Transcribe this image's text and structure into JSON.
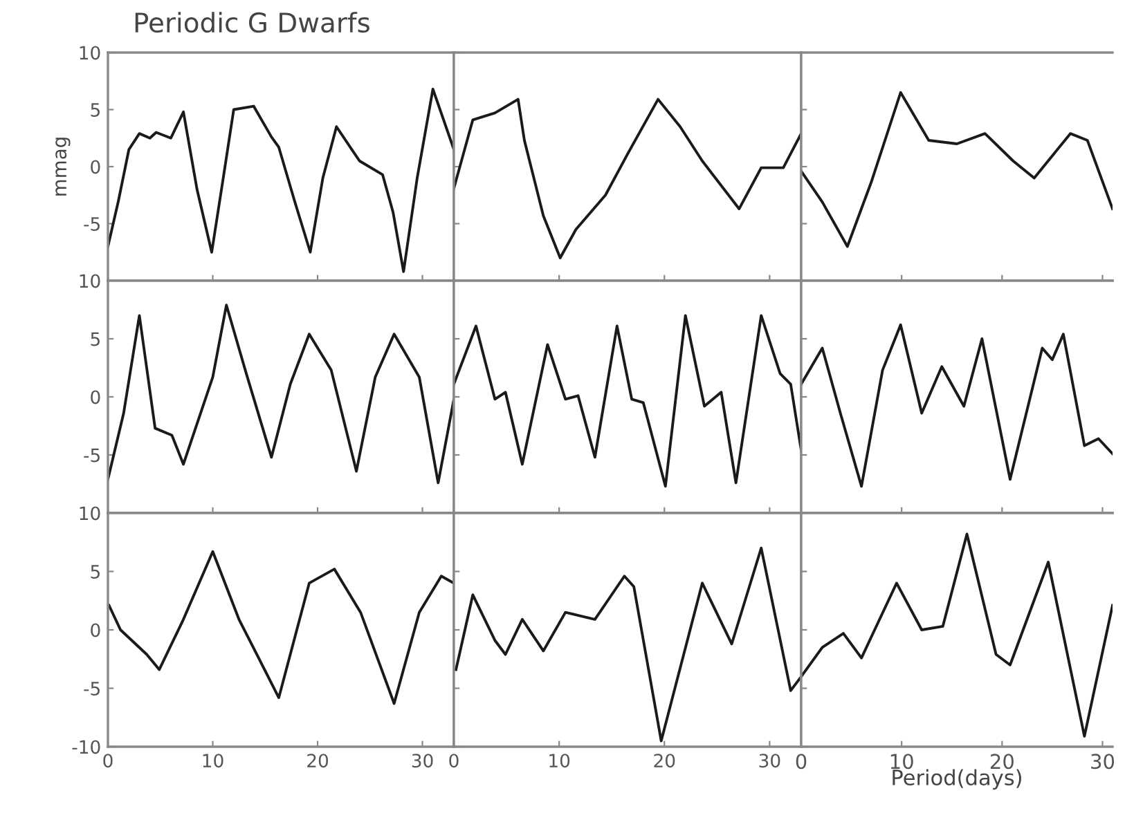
{
  "chart_data": [
    {
      "type": "line",
      "title": "Periodic G Dwarfs",
      "ylabel": "mmag",
      "tick_labels": "y",
      "xlim": [
        0,
        33
      ],
      "xticks": [
        0,
        10,
        20,
        30
      ],
      "ylim": [
        -10,
        10
      ],
      "yticks": [
        {
          "value": -10,
          "label": null
        },
        -5,
        0,
        5,
        10
      ],
      "grid": false,
      "legend": false,
      "series": [
        {
          "color": "#1a1a1a",
          "x": [
            0,
            1,
            2,
            3,
            4,
            4.6,
            6,
            7.2,
            8.5,
            9.9,
            11,
            12,
            13.9,
            15.6,
            16.3,
            17.8,
            19.3,
            20.5,
            21.8,
            24,
            26.2,
            27.2,
            28.2,
            29.5,
            31,
            33
          ],
          "values": [
            -7,
            -3,
            1.5,
            2.9,
            2.5,
            3,
            2.5,
            4.8,
            -2,
            -7.5,
            -1,
            5,
            5.3,
            2.6,
            1.7,
            -3,
            -7.5,
            -1,
            3.5,
            0.5,
            -0.7,
            -4,
            -9.2,
            -1,
            6.8,
            1.5
          ]
        }
      ]
    },
    {
      "type": "line",
      "tick_labels": false,
      "xlim": [
        0,
        33
      ],
      "xticks": [
        0,
        10,
        20,
        30
      ],
      "ylim": [
        -10,
        10
      ],
      "yticks": [
        -10,
        -5,
        0,
        5,
        10
      ],
      "grid": false,
      "legend": false,
      "series": [
        {
          "color": "#1a1a1a",
          "x": [
            0,
            1.8,
            3.9,
            6.1,
            6.7,
            8.5,
            10.1,
            11.6,
            14.4,
            16.5,
            19.4,
            21.5,
            23.6,
            27.1,
            29.2,
            31.3,
            33
          ],
          "values": [
            -1.9,
            4.1,
            4.7,
            5.9,
            2.3,
            -4.3,
            -8,
            -5.5,
            -2.5,
            1.1,
            5.9,
            3.5,
            0.5,
            -3.7,
            -0.1,
            -0.1,
            2.9
          ]
        }
      ]
    },
    {
      "type": "line",
      "tick_labels": false,
      "xlim": [
        0,
        31
      ],
      "xticks": [
        0,
        10,
        20,
        30
      ],
      "ylim": [
        -10,
        10
      ],
      "yticks": [
        -10,
        -5,
        0,
        5,
        10
      ],
      "grid": false,
      "legend": false,
      "series": [
        {
          "color": "#1a1a1a",
          "x": [
            0,
            2.1,
            4.6,
            7,
            9.9,
            12.7,
            15.5,
            18.3,
            21.1,
            23.2,
            26.8,
            28.5,
            31
          ],
          "values": [
            -0.4,
            -3.1,
            -7,
            -1.3,
            6.5,
            2.3,
            2,
            2.9,
            0.5,
            -1,
            2.9,
            2.3,
            -3.7
          ]
        }
      ]
    },
    {
      "type": "line",
      "tick_labels": "y",
      "xlim": [
        0,
        33
      ],
      "xticks": [
        0,
        10,
        20,
        30
      ],
      "ylim": [
        -10,
        10
      ],
      "yticks": [
        {
          "value": -10,
          "label": null
        },
        -5,
        0,
        5,
        10
      ],
      "grid": false,
      "legend": false,
      "series": [
        {
          "color": "#1a1a1a",
          "x": [
            0,
            1.5,
            3,
            4.5,
            6.1,
            7.2,
            10,
            11.3,
            13.2,
            15.6,
            17.4,
            19.2,
            21.3,
            23.7,
            25.5,
            27.3,
            29.7,
            31.5,
            33
          ],
          "values": [
            -7.1,
            -1.4,
            7,
            -2.7,
            -3.3,
            -5.8,
            1.7,
            7.9,
            2,
            -5.2,
            1.1,
            5.4,
            2.3,
            -6.4,
            1.7,
            5.4,
            1.7,
            -7.4,
            -0.2
          ]
        }
      ]
    },
    {
      "type": "line",
      "tick_labels": false,
      "xlim": [
        0,
        33
      ],
      "xticks": [
        0,
        10,
        20,
        30
      ],
      "ylim": [
        -10,
        10
      ],
      "yticks": [
        -10,
        -5,
        0,
        5,
        10
      ],
      "grid": false,
      "legend": false,
      "series": [
        {
          "color": "#1a1a1a",
          "x": [
            0,
            2.1,
            3.9,
            4.9,
            6.5,
            8.9,
            10.6,
            11.8,
            13.4,
            15.5,
            16.9,
            18,
            20.1,
            22,
            23.8,
            25.4,
            26.8,
            29.2,
            31,
            32,
            33
          ],
          "values": [
            1.1,
            6.1,
            -0.2,
            0.4,
            -5.8,
            4.5,
            -0.2,
            0.1,
            -5.2,
            6.1,
            -0.2,
            -0.5,
            -7.7,
            7,
            -0.8,
            0.4,
            -7.4,
            7,
            2,
            1.1,
            -4.6
          ]
        }
      ]
    },
    {
      "type": "line",
      "tick_labels": false,
      "xlim": [
        0,
        31
      ],
      "xticks": [
        0,
        10,
        20,
        30
      ],
      "ylim": [
        -10,
        10
      ],
      "yticks": [
        -10,
        -5,
        0,
        5,
        10
      ],
      "grid": false,
      "legend": false,
      "series": [
        {
          "color": "#1a1a1a",
          "x": [
            0,
            2.1,
            3.9,
            6,
            8.1,
            9.9,
            12,
            14,
            16.2,
            18,
            20.8,
            24,
            25,
            26.1,
            28.2,
            29.6,
            31
          ],
          "values": [
            1.1,
            4.2,
            -1.4,
            -7.7,
            2.3,
            6.2,
            -1.4,
            2.6,
            -0.8,
            5,
            -7.1,
            4.2,
            3.2,
            5.4,
            -4.2,
            -3.6,
            -4.9
          ]
        }
      ]
    },
    {
      "type": "line",
      "xlim": [
        0,
        33
      ],
      "xticks": [
        0,
        10,
        20,
        30
      ],
      "ylim": [
        -10,
        10
      ],
      "yticks": [
        -10,
        -5,
        0,
        5,
        10
      ],
      "grid": false,
      "legend": false,
      "series": [
        {
          "color": "#1a1a1a",
          "x": [
            0.1,
            1.2,
            3.7,
            4.9,
            7.2,
            10,
            12.5,
            14.2,
            16.3,
            19.2,
            21.6,
            24.1,
            27.3,
            29.7,
            31.8,
            33
          ],
          "values": [
            2.1,
            0,
            -2.1,
            -3.4,
            0.9,
            6.7,
            0.9,
            -2.1,
            -5.8,
            4,
            5.2,
            1.5,
            -6.3,
            1.5,
            4.6,
            4
          ]
        }
      ]
    },
    {
      "type": "line",
      "tick_labels": "x",
      "xlim": [
        0,
        33
      ],
      "xticks": [
        0,
        10,
        20,
        30
      ],
      "ylim": [
        -10,
        10
      ],
      "yticks": [
        -10,
        -5,
        0,
        5,
        10
      ],
      "grid": false,
      "legend": false,
      "series": [
        {
          "color": "#1a1a1a",
          "x": [
            0.2,
            1.8,
            3.9,
            4.9,
            6.5,
            8.5,
            10.6,
            13.4,
            16.2,
            17.1,
            19.7,
            23.6,
            26.4,
            29.2,
            32,
            33
          ],
          "values": [
            -3.4,
            3,
            -0.9,
            -2.1,
            0.9,
            -1.8,
            1.5,
            0.9,
            4.6,
            3.7,
            -9.5,
            4,
            -1.2,
            7,
            -5.2,
            -4
          ]
        }
      ]
    },
    {
      "type": "line",
      "xlabel": "Period(days)",
      "tick_labels": "x",
      "xlim": [
        0,
        31
      ],
      "xticks": [
        0,
        10,
        20,
        30
      ],
      "ylim": [
        -10,
        10
      ],
      "yticks": [
        -10,
        -5,
        0,
        5,
        10
      ],
      "grid": false,
      "legend": false,
      "series": [
        {
          "color": "#1a1a1a",
          "x": [
            0,
            2.1,
            4.2,
            6,
            9.5,
            12,
            14.1,
            16.5,
            19.4,
            20.8,
            24.6,
            28.2,
            31
          ],
          "values": [
            -4,
            -1.5,
            -0.3,
            -2.4,
            4,
            0,
            0.3,
            8.2,
            -2.1,
            -3,
            5.8,
            -9.1,
            2.1
          ]
        }
      ]
    }
  ]
}
